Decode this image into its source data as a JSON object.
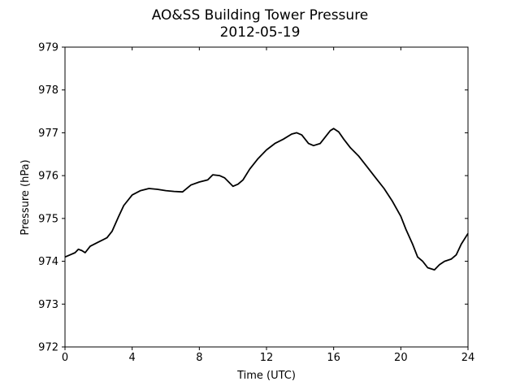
{
  "chart_data": {
    "type": "line",
    "title": "AO&SS Building Tower Pressure",
    "subtitle": "2012-05-19",
    "xlabel": "Time (UTC)",
    "ylabel": "Pressure (hPa)",
    "xlim": [
      0,
      24
    ],
    "ylim": [
      972,
      979
    ],
    "xticks": [
      0,
      4,
      8,
      12,
      16,
      20,
      24
    ],
    "yticks": [
      972,
      973,
      974,
      975,
      976,
      977,
      978,
      979
    ],
    "grid": false,
    "line_color": "#000000",
    "series": [
      {
        "x": [
          0,
          0.3,
          0.6,
          0.8,
          1.0,
          1.2,
          1.5,
          2.0,
          2.5,
          2.8,
          3.2,
          3.5,
          4.0,
          4.5,
          5.0,
          5.5,
          6.0,
          6.5,
          7.0,
          7.5,
          8.0,
          8.5,
          8.8,
          9.2,
          9.5,
          10.0,
          10.3,
          10.6,
          11.0,
          11.5,
          12.0,
          12.5,
          13.0,
          13.5,
          13.8,
          14.1,
          14.5,
          14.8,
          15.2,
          15.5,
          15.8,
          16.0,
          16.3,
          16.6,
          17.0,
          17.5,
          18.0,
          18.5,
          19.0,
          19.5,
          20.0,
          20.3,
          20.7,
          21.0,
          21.3,
          21.6,
          22.0,
          22.3,
          22.6,
          23.0,
          23.3,
          23.6,
          24.0
        ],
        "y": [
          974.1,
          974.15,
          974.2,
          974.28,
          974.25,
          974.2,
          974.35,
          974.45,
          974.55,
          974.7,
          975.05,
          975.3,
          975.55,
          975.65,
          975.7,
          975.68,
          975.65,
          975.63,
          975.62,
          975.78,
          975.85,
          975.9,
          976.02,
          976.0,
          975.95,
          975.75,
          975.8,
          975.9,
          976.15,
          976.4,
          976.6,
          976.75,
          976.85,
          976.97,
          977.0,
          976.95,
          976.75,
          976.7,
          976.75,
          976.9,
          977.05,
          977.1,
          977.02,
          976.85,
          976.65,
          976.45,
          976.2,
          975.95,
          975.7,
          975.4,
          975.05,
          974.75,
          974.4,
          974.1,
          974.0,
          973.85,
          973.8,
          973.92,
          974.0,
          974.05,
          974.15,
          974.4,
          974.65
        ]
      }
    ]
  }
}
